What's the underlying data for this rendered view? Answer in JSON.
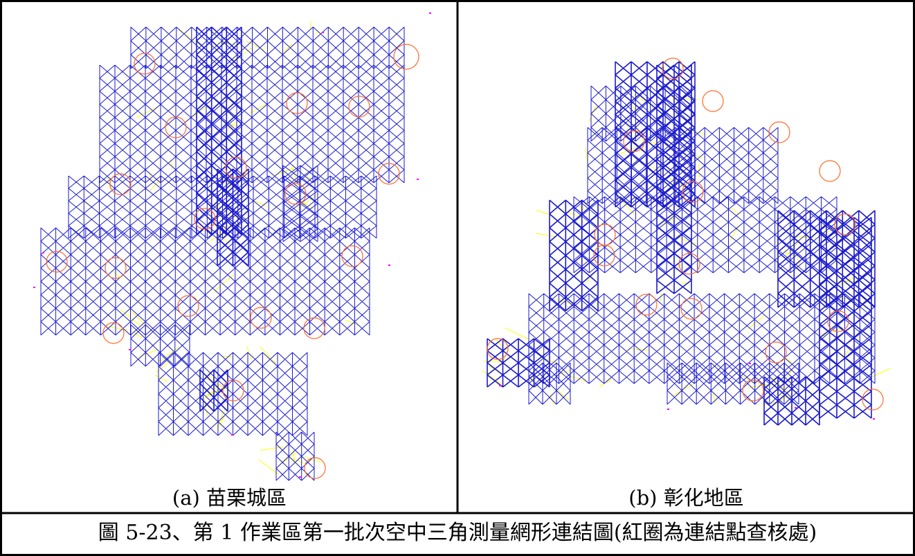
{
  "panels": [
    {
      "id": "a",
      "caption": "(a)  苗栗城區"
    },
    {
      "id": "b",
      "caption": "(b)  彰化地區"
    }
  ],
  "figure_caption": "圖 5-23、第 1 作業區第一批次空中三角測量網形連結圖(紅圈為連結點查核處)",
  "colors": {
    "network_line": "#1a1acc",
    "tie_line": "#ffff00",
    "check_circle": "#ff6a2a",
    "point": "#ff00ff",
    "border": "#000000"
  }
}
